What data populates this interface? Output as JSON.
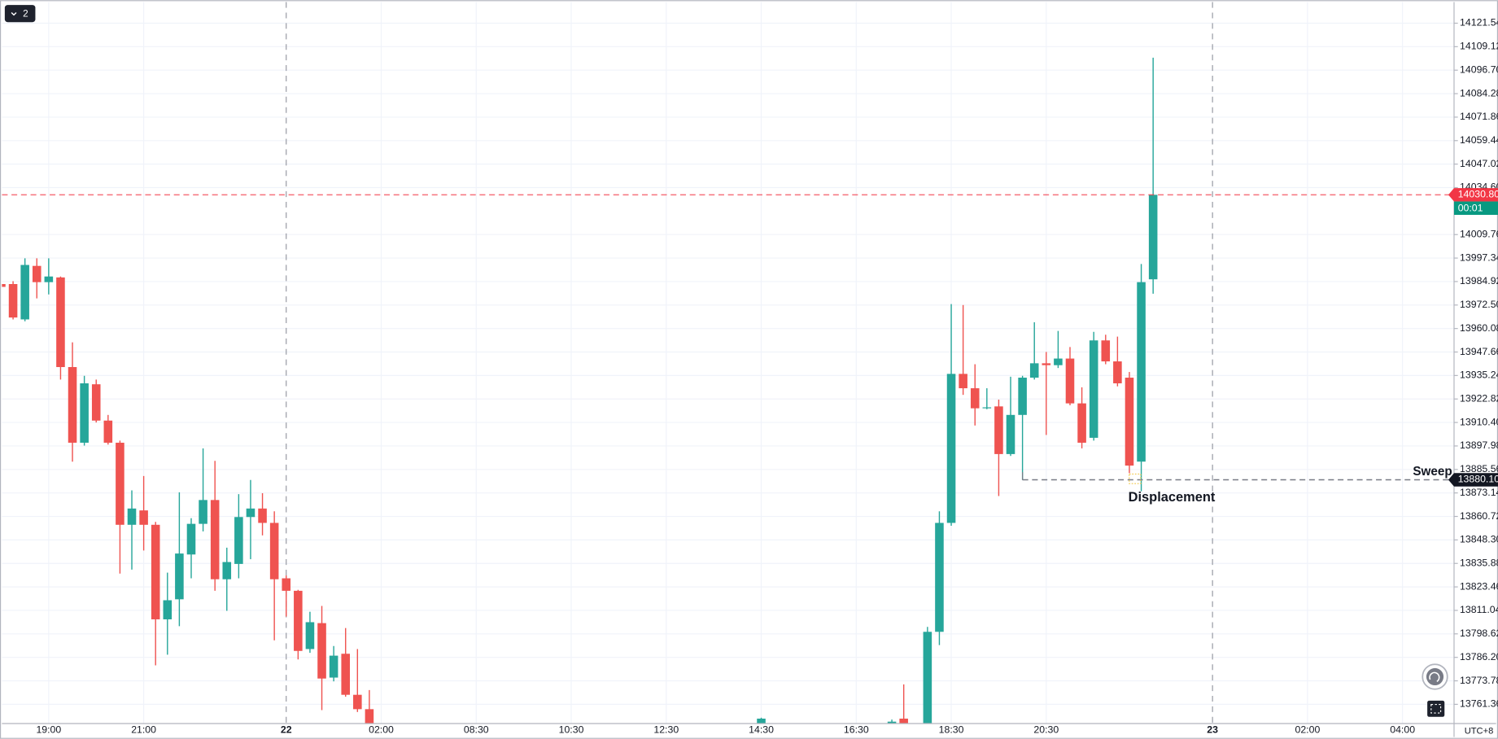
{
  "chart_data": {
    "type": "candlestick",
    "x": [
      -4,
      -3,
      -2,
      -1,
      0,
      1,
      2,
      3,
      4,
      5,
      6,
      7,
      8,
      9,
      10,
      11,
      12,
      13,
      14,
      15,
      16,
      17,
      18,
      19,
      20,
      21,
      22,
      23,
      24,
      25,
      26,
      27,
      60,
      71,
      72,
      74,
      75,
      76,
      77,
      78,
      79,
      80,
      81,
      82,
      83,
      84,
      85,
      86,
      87,
      88,
      89,
      90,
      91,
      92,
      93
    ],
    "open": [
      13983.6,
      13983.6,
      13964.9,
      13993.2,
      13984.6,
      13987.1,
      13939.7,
      13899.7,
      13930.6,
      13911.4,
      13899.7,
      13856.3,
      13863.9,
      13856.3,
      13806.3,
      13816.9,
      13840.6,
      13856.8,
      13869.4,
      13827.5,
      13835.6,
      13860.4,
      13864.9,
      13857.3,
      13828.0,
      13821.4,
      13790.6,
      13804.3,
      13775.5,
      13788.1,
      13766.4,
      13758.8,
      13751.2,
      13751.2,
      13753.8,
      13745.0,
      13799.7,
      13857.3,
      13936.1,
      13928.5,
      13917.9,
      13918.9,
      13893.7,
      13914.4,
      13934.1,
      13941.7,
      13940.7,
      13944.2,
      13920.5,
      13902.3,
      13953.8,
      13942.7,
      13934.1,
      13889.7,
      13986.1
    ],
    "high": [
      13984.1,
      13985.1,
      13997.2,
      13997.2,
      13997.2,
      13987.6,
      13952.8,
      13935.1,
      13933.1,
      13914.4,
      13900.8,
      13874.5,
      13882.1,
      13857.8,
      13831.0,
      13873.5,
      13859.8,
      13896.7,
      13890.1,
      13844.2,
      13872.5,
      13880.0,
      13873.0,
      13863.4,
      13829.5,
      13821.9,
      13810.3,
      13813.4,
      13792.2,
      13801.7,
      13790.6,
      13768.9,
      13754.3,
      13753.3,
      13771.9,
      13802.3,
      13863.4,
      13973.0,
      13972.5,
      13941.2,
      13928.5,
      13922.5,
      13934.6,
      13935.1,
      13963.4,
      13947.7,
      13958.8,
      13950.3,
      13929.0,
      13958.3,
      13956.8,
      13955.8,
      13937.1,
      13994.2,
      14103.3
    ],
    "low": [
      13981.6,
      13964.9,
      13963.9,
      13976.0,
      13978.1,
      13933.1,
      13889.7,
      13898.2,
      13910.4,
      13898.7,
      13830.5,
      13832.6,
      13842.7,
      13782.0,
      13787.6,
      13802.7,
      13828.0,
      13852.8,
      13821.4,
      13810.8,
      13828.0,
      13838.1,
      13850.7,
      13795.2,
      13807.8,
      13785.1,
      13788.6,
      13758.3,
      13773.5,
      13765.4,
      13757.3,
      13748.0,
      13751.2,
      13751.2,
      13751.2,
      13745.0,
      13792.7,
      13855.8,
      13925.0,
      13908.8,
      13917.4,
      13871.5,
      13892.7,
      13880.0,
      13933.1,
      13903.8,
      13939.2,
      13919.5,
      13896.7,
      13900.8,
      13941.2,
      13929.5,
      13883.6,
      13874.0,
      13978.5
    ],
    "close": [
      13982.1,
      13965.9,
      13993.7,
      13984.6,
      13987.6,
      13939.7,
      13899.7,
      13931.1,
      13911.4,
      13899.7,
      13856.3,
      13864.9,
      13856.3,
      13806.3,
      13816.4,
      13841.1,
      13856.8,
      13869.4,
      13827.5,
      13836.6,
      13860.4,
      13864.9,
      13857.3,
      13827.5,
      13821.4,
      13789.6,
      13804.8,
      13775.0,
      13787.1,
      13766.4,
      13758.8,
      13750.0,
      13753.8,
      13752.2,
      13751.2,
      13799.7,
      13857.3,
      13936.1,
      13928.5,
      13917.9,
      13918.4,
      13893.7,
      13914.4,
      13934.1,
      13941.7,
      13940.7,
      13944.2,
      13920.5,
      13899.7,
      13953.8,
      13942.7,
      13931.1,
      13887.6,
      13984.6,
      14030.8
    ],
    "up_color": "#26a69a",
    "down_color": "#ef5350",
    "ylim": [
      13751.2,
      14132.7
    ],
    "yticks": [
      {
        "value": 14121.54,
        "label": "14121.54"
      },
      {
        "value": 14109.12,
        "label": "14109.12"
      },
      {
        "value": 14096.7,
        "label": "14096.70"
      },
      {
        "value": 14084.28,
        "label": "14084.28"
      },
      {
        "value": 14071.86,
        "label": "14071.86"
      },
      {
        "value": 14059.44,
        "label": "14059.44"
      },
      {
        "value": 14047.02,
        "label": "14047.02"
      },
      {
        "value": 14034.6,
        "label": "14034.60"
      },
      {
        "value": 14009.76,
        "label": "14009.76"
      },
      {
        "value": 13997.34,
        "label": "13997.34"
      },
      {
        "value": 13984.92,
        "label": "13984.92"
      },
      {
        "value": 13972.5,
        "label": "13972.50"
      },
      {
        "value": 13960.08,
        "label": "13960.08"
      },
      {
        "value": 13947.66,
        "label": "13947.66"
      },
      {
        "value": 13935.24,
        "label": "13935.24"
      },
      {
        "value": 13922.82,
        "label": "13922.82"
      },
      {
        "value": 13910.4,
        "label": "13910.40"
      },
      {
        "value": 13897.98,
        "label": "13897.98"
      },
      {
        "value": 13885.56,
        "label": "13885.56"
      },
      {
        "value": 13873.14,
        "label": "13873.14"
      },
      {
        "value": 13860.72,
        "label": "13860.72"
      },
      {
        "value": 13848.3,
        "label": "13848.30"
      },
      {
        "value": 13835.88,
        "label": "13835.88"
      },
      {
        "value": 13823.46,
        "label": "13823.46"
      },
      {
        "value": 13811.04,
        "label": "13811.04"
      },
      {
        "value": 13798.62,
        "label": "13798.62"
      },
      {
        "value": 13786.2,
        "label": "13786.20"
      },
      {
        "value": 13773.78,
        "label": "13773.78"
      },
      {
        "value": 13761.36,
        "label": "13761.36"
      }
    ],
    "xlim": [
      -3.94,
      118.34
    ],
    "xticks": [
      {
        "value": 0,
        "label": "19:00"
      },
      {
        "value": 8,
        "label": "21:00"
      },
      {
        "value": 20,
        "label": "22"
      },
      {
        "value": 28,
        "label": "02:00"
      },
      {
        "value": 36,
        "label": "08:30"
      },
      {
        "value": 44,
        "label": "10:30"
      },
      {
        "value": 52,
        "label": "12:30"
      },
      {
        "value": 60,
        "label": "14:30"
      },
      {
        "value": 68,
        "label": "16:30"
      },
      {
        "value": 76,
        "label": "18:30"
      },
      {
        "value": 84,
        "label": "20:30"
      },
      {
        "value": 98,
        "label": "23"
      },
      {
        "value": 106,
        "label": "02:00"
      },
      {
        "value": 114,
        "label": "04:00"
      }
    ],
    "grid": true,
    "current_price": {
      "value": 14030.8,
      "label": "14030.80",
      "countdown": "00:01",
      "color": "#f23645"
    },
    "sweep": {
      "value": 13880.1,
      "label": "13880.10",
      "text": "Sweep",
      "start_x": 82
    },
    "annotation": "Displacement",
    "timezone": "UTC+8",
    "interval": "2"
  }
}
